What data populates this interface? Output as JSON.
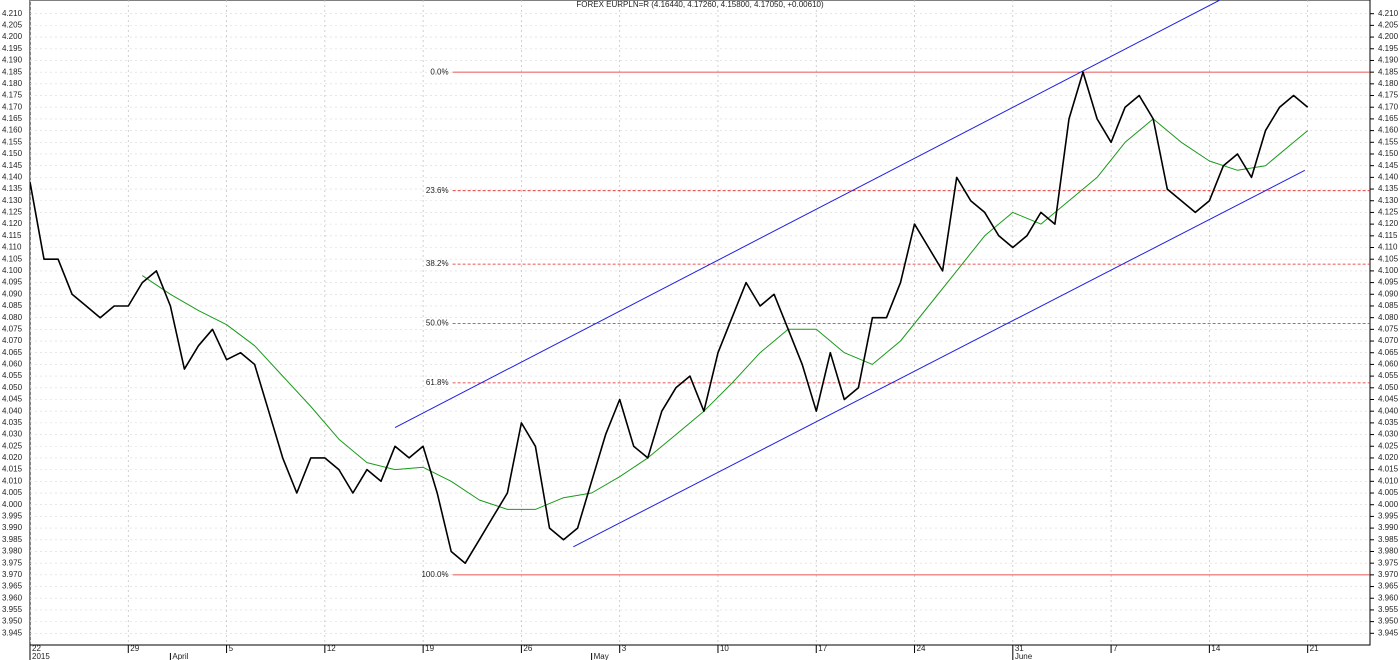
{
  "chart_data": {
    "type": "line",
    "title": "FOREX EURPLN=R (4.16440, 4.17260, 4.15800, 4.17050, +0.00610)",
    "xlim": [
      0,
      95.44
    ],
    "ylim": [
      3.94,
      4.215
    ],
    "grid": true,
    "xticks": [
      {
        "value": 0,
        "label": "22"
      },
      {
        "value": 7,
        "label": "29"
      },
      {
        "value": 14,
        "label": "5"
      },
      {
        "value": 21,
        "label": "12"
      },
      {
        "value": 28,
        "label": "19"
      },
      {
        "value": 35,
        "label": "26"
      },
      {
        "value": 42,
        "label": "3"
      },
      {
        "value": 49,
        "label": "10"
      },
      {
        "value": 56,
        "label": "17"
      },
      {
        "value": 63,
        "label": "24"
      },
      {
        "value": 70,
        "label": "31"
      },
      {
        "value": 77,
        "label": "7"
      },
      {
        "value": 84,
        "label": "14"
      },
      {
        "value": 91,
        "label": "21"
      }
    ],
    "x_sublabels": [
      {
        "value": 0,
        "label": "2015"
      },
      {
        "value": 10,
        "label": "April"
      },
      {
        "value": 40,
        "label": "May"
      },
      {
        "value": 70,
        "label": "June"
      }
    ],
    "yticks": [
      {
        "value": 3.945,
        "label": "3.945"
      },
      {
        "value": 3.95,
        "label": "3.950"
      },
      {
        "value": 3.955,
        "label": "3.955"
      },
      {
        "value": 3.96,
        "label": "3.960"
      },
      {
        "value": 3.965,
        "label": "3.965"
      },
      {
        "value": 3.97,
        "label": "3.970"
      },
      {
        "value": 3.975,
        "label": "3.975"
      },
      {
        "value": 3.98,
        "label": "3.980"
      },
      {
        "value": 3.985,
        "label": "3.985"
      },
      {
        "value": 3.99,
        "label": "3.990"
      },
      {
        "value": 3.995,
        "label": "3.995"
      },
      {
        "value": 4.0,
        "label": "4.000"
      },
      {
        "value": 4.005,
        "label": "4.005"
      },
      {
        "value": 4.01,
        "label": "4.010"
      },
      {
        "value": 4.015,
        "label": "4.015"
      },
      {
        "value": 4.02,
        "label": "4.020"
      },
      {
        "value": 4.025,
        "label": "4.025"
      },
      {
        "value": 4.03,
        "label": "4.030"
      },
      {
        "value": 4.035,
        "label": "4.035"
      },
      {
        "value": 4.04,
        "label": "4.040"
      },
      {
        "value": 4.045,
        "label": "4.045"
      },
      {
        "value": 4.05,
        "label": "4.050"
      },
      {
        "value": 4.055,
        "label": "4.055"
      },
      {
        "value": 4.06,
        "label": "4.060"
      },
      {
        "value": 4.065,
        "label": "4.065"
      },
      {
        "value": 4.07,
        "label": "4.070"
      },
      {
        "value": 4.075,
        "label": "4.075"
      },
      {
        "value": 4.08,
        "label": "4.080"
      },
      {
        "value": 4.085,
        "label": "4.085"
      },
      {
        "value": 4.09,
        "label": "4.090"
      },
      {
        "value": 4.095,
        "label": "4.095"
      },
      {
        "value": 4.1,
        "label": "4.100"
      },
      {
        "value": 4.105,
        "label": "4.105"
      },
      {
        "value": 4.11,
        "label": "4.110"
      },
      {
        "value": 4.115,
        "label": "4.115"
      },
      {
        "value": 4.12,
        "label": "4.120"
      },
      {
        "value": 4.125,
        "label": "4.125"
      },
      {
        "value": 4.13,
        "label": "4.130"
      },
      {
        "value": 4.135,
        "label": "4.135"
      },
      {
        "value": 4.14,
        "label": "4.140"
      },
      {
        "value": 4.145,
        "label": "4.145"
      },
      {
        "value": 4.15,
        "label": "4.150"
      },
      {
        "value": 4.155,
        "label": "4.155"
      },
      {
        "value": 4.16,
        "label": "4.160"
      },
      {
        "value": 4.165,
        "label": "4.165"
      },
      {
        "value": 4.17,
        "label": "4.170"
      },
      {
        "value": 4.175,
        "label": "4.175"
      },
      {
        "value": 4.18,
        "label": "4.180"
      },
      {
        "value": 4.185,
        "label": "4.185"
      },
      {
        "value": 4.19,
        "label": "4.190"
      },
      {
        "value": 4.195,
        "label": "4.195"
      },
      {
        "value": 4.2,
        "label": "4.200"
      },
      {
        "value": 4.205,
        "label": "4.205"
      },
      {
        "value": 4.21,
        "label": "4.210"
      }
    ],
    "series": [
      {
        "color": "#000000",
        "x": [
          0,
          1,
          2,
          3,
          4,
          5,
          6,
          7,
          8,
          9,
          10,
          11,
          12,
          13,
          14,
          15,
          16,
          17,
          18,
          19,
          20,
          21,
          22,
          23,
          24,
          25,
          26,
          27,
          28,
          29,
          30,
          31,
          32,
          33,
          34,
          35,
          36,
          37,
          38,
          39,
          40,
          41,
          42,
          43,
          44,
          45,
          46,
          47,
          48,
          49,
          50,
          51,
          52,
          53,
          54,
          55,
          56,
          57,
          58,
          59,
          60,
          61,
          62,
          63,
          64,
          65,
          66,
          67,
          68,
          69,
          70,
          71,
          72,
          73,
          74,
          75,
          76,
          77,
          78,
          79,
          80,
          81,
          82,
          83,
          84,
          85,
          86,
          87,
          88,
          89,
          90,
          91
        ],
        "values": [
          4.138,
          4.105,
          4.105,
          4.09,
          4.085,
          4.08,
          4.085,
          4.085,
          4.095,
          4.1,
          4.085,
          4.058,
          4.068,
          4.075,
          4.062,
          4.065,
          4.06,
          4.04,
          4.02,
          4.005,
          4.02,
          4.02,
          4.015,
          4.005,
          4.015,
          4.01,
          4.025,
          4.02,
          4.025,
          4.005,
          3.98,
          3.975,
          3.985,
          3.995,
          4.005,
          4.035,
          4.025,
          3.99,
          3.985,
          3.99,
          4.01,
          4.03,
          4.045,
          4.025,
          4.02,
          4.04,
          4.05,
          4.055,
          4.04,
          4.065,
          4.08,
          4.095,
          4.085,
          4.09,
          4.075,
          4.06,
          4.04,
          4.065,
          4.045,
          4.05,
          4.08,
          4.08,
          4.095,
          4.12,
          4.11,
          4.1,
          4.14,
          4.13,
          4.125,
          4.115,
          4.11,
          4.115,
          4.125,
          4.12,
          4.165,
          4.185,
          4.165,
          4.155,
          4.17,
          4.175,
          4.165,
          4.135,
          4.13,
          4.125,
          4.13,
          4.145,
          4.15,
          4.14,
          4.16,
          4.17,
          4.175,
          4.17
        ]
      },
      {
        "color": "#1a9a1a",
        "x": [
          8,
          10,
          12,
          14,
          16,
          18,
          20,
          22,
          24,
          26,
          28,
          30,
          32,
          34,
          36,
          38,
          40,
          42,
          44,
          46,
          48,
          50,
          52,
          54,
          56,
          58,
          60,
          62,
          64,
          66,
          68,
          70,
          72,
          74,
          76,
          78,
          80,
          82,
          84,
          86,
          88,
          90,
          91
        ],
        "values": [
          4.098,
          4.09,
          4.083,
          4.077,
          4.068,
          4.055,
          4.042,
          4.028,
          4.018,
          4.015,
          4.016,
          4.01,
          4.002,
          3.998,
          3.998,
          4.003,
          4.005,
          4.012,
          4.02,
          4.03,
          4.04,
          4.052,
          4.065,
          4.075,
          4.075,
          4.065,
          4.06,
          4.07,
          4.085,
          4.1,
          4.115,
          4.125,
          4.12,
          4.13,
          4.14,
          4.155,
          4.165,
          4.155,
          4.147,
          4.143,
          4.145,
          4.155,
          4.16
        ]
      }
    ],
    "fib_levels": {
      "x_start": 30.1,
      "color": "#e02020",
      "levels": [
        {
          "value": 4.185,
          "label": "0.0%",
          "style": "solid"
        },
        {
          "value": 4.1343,
          "label": "23.6%",
          "style": "dashed"
        },
        {
          "value": 4.1029,
          "label": "38.2%",
          "style": "dashed"
        },
        {
          "value": 4.0775,
          "label": "50.0%",
          "style": "dashed"
        },
        {
          "value": 4.0521,
          "label": "61.8%",
          "style": "dashed"
        },
        {
          "value": 3.97,
          "label": "100.0%",
          "style": "solid"
        }
      ]
    },
    "trendlines": {
      "color": "#2020e0",
      "lines": [
        {
          "x": [
            26,
            84.8
          ],
          "y": [
            4.033,
            4.216
          ]
        },
        {
          "x": [
            38.7,
            90.8
          ],
          "y": [
            3.982,
            4.143
          ]
        }
      ]
    }
  }
}
